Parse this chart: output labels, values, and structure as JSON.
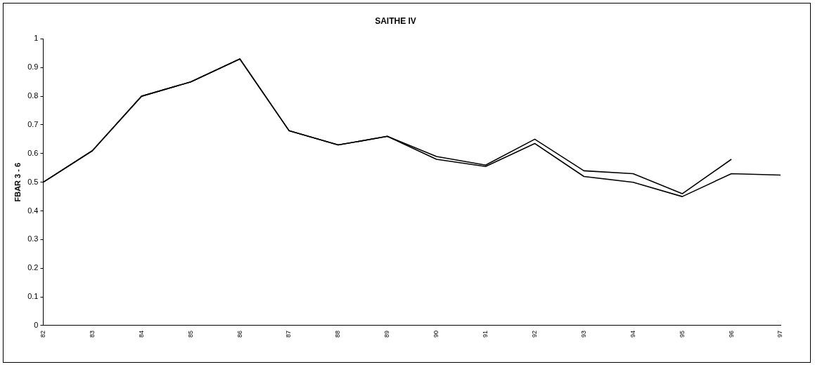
{
  "chart_data": {
    "type": "line",
    "title": "SAITHE IV",
    "ylabel": "FBAR 3 - 6",
    "categories": [
      "82",
      "83",
      "84",
      "85",
      "86",
      "87",
      "88",
      "89",
      "90",
      "91",
      "92",
      "93",
      "94",
      "95",
      "96",
      "97"
    ],
    "series": [
      {
        "color": "#000000",
        "values": [
          0.5,
          0.61,
          0.8,
          0.85,
          0.93,
          0.68,
          0.63,
          0.66,
          0.59,
          0.56,
          0.65,
          0.54,
          0.53,
          0.46,
          0.58,
          null
        ]
      },
      {
        "color": "#000000",
        "values": [
          0.5,
          0.61,
          0.8,
          0.85,
          0.93,
          0.68,
          0.63,
          0.66,
          0.58,
          0.555,
          0.635,
          0.52,
          0.5,
          0.45,
          0.53,
          0.525
        ]
      }
    ],
    "ylim": [
      0,
      1
    ],
    "yticks": [
      0,
      0.1,
      0.2,
      0.3,
      0.4,
      0.5,
      0.6,
      0.7,
      0.8,
      0.9,
      1
    ],
    "grid": false,
    "legend": false,
    "marker": "none",
    "line_style": "solid"
  }
}
